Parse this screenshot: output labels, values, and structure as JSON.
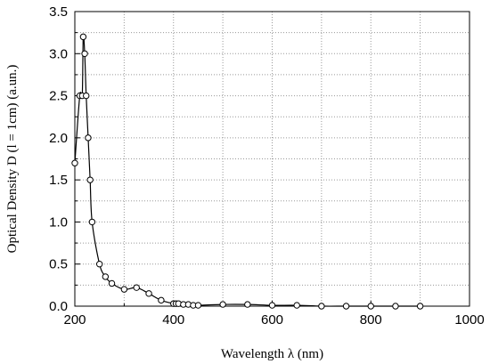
{
  "chart_data": {
    "type": "scatter",
    "title": "",
    "xlabel": "Wavelength λ (nm)",
    "ylabel": "Optical Density D (l = 1cm) (a.un.)",
    "xlim": [
      200,
      1000
    ],
    "ylim": [
      0.0,
      3.5
    ],
    "x_ticks": [
      "200",
      "400",
      "600",
      "800",
      "1000"
    ],
    "y_ticks": [
      "0.0",
      "0.5",
      "1.0",
      "1.5",
      "2.0",
      "2.5",
      "3.0",
      "3.5"
    ],
    "grid": "dotted",
    "marker": "open-circle",
    "line": "smooth",
    "series": [
      {
        "x": [
          200,
          210,
          215,
          217,
          220,
          223,
          227,
          231,
          235,
          250,
          262,
          275,
          300,
          325,
          350,
          375,
          400,
          405,
          410,
          420,
          430,
          440,
          450,
          500,
          550,
          600,
          650,
          700,
          750,
          800,
          850,
          900
        ],
        "y": [
          1.7,
          2.5,
          2.5,
          3.2,
          3.0,
          2.5,
          2.0,
          1.5,
          1.0,
          0.5,
          0.35,
          0.27,
          0.2,
          0.22,
          0.15,
          0.07,
          0.03,
          0.03,
          0.03,
          0.02,
          0.02,
          0.01,
          0.01,
          0.02,
          0.02,
          0.01,
          0.01,
          0.0,
          0.0,
          0.0,
          0.0,
          0.0
        ]
      }
    ]
  }
}
